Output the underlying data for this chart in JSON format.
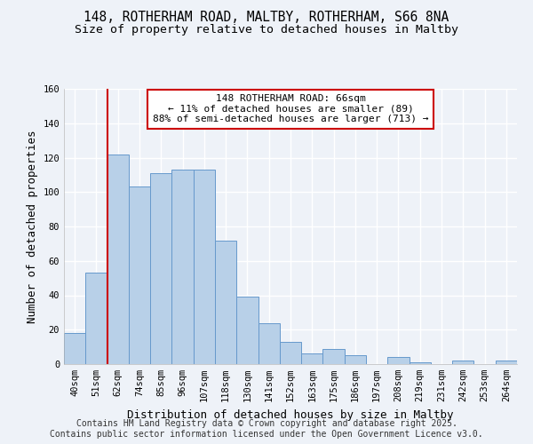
{
  "title1": "148, ROTHERHAM ROAD, MALTBY, ROTHERHAM, S66 8NA",
  "title2": "Size of property relative to detached houses in Maltby",
  "xlabel": "Distribution of detached houses by size in Maltby",
  "ylabel": "Number of detached properties",
  "bar_labels": [
    "40sqm",
    "51sqm",
    "62sqm",
    "74sqm",
    "85sqm",
    "96sqm",
    "107sqm",
    "118sqm",
    "130sqm",
    "141sqm",
    "152sqm",
    "163sqm",
    "175sqm",
    "186sqm",
    "197sqm",
    "208sqm",
    "219sqm",
    "231sqm",
    "242sqm",
    "253sqm",
    "264sqm"
  ],
  "bar_values": [
    18,
    53,
    122,
    103,
    111,
    113,
    113,
    72,
    39,
    24,
    13,
    6,
    9,
    5,
    0,
    4,
    1,
    0,
    2,
    0,
    2
  ],
  "bar_color": "#b8d0e8",
  "bar_edge_color": "#6699cc",
  "vline_x": 1.5,
  "vline_color": "#cc0000",
  "annotation_text": "148 ROTHERHAM ROAD: 66sqm\n← 11% of detached houses are smaller (89)\n88% of semi-detached houses are larger (713) →",
  "annotation_box_color": "#ffffff",
  "annotation_box_edge": "#cc0000",
  "ylim": [
    0,
    160
  ],
  "yticks": [
    0,
    20,
    40,
    60,
    80,
    100,
    120,
    140,
    160
  ],
  "footer1": "Contains HM Land Registry data © Crown copyright and database right 2025.",
  "footer2": "Contains public sector information licensed under the Open Government Licence v3.0.",
  "bg_color": "#eef2f8",
  "plot_bg_color": "#eef2f8",
  "title_fontsize": 10.5,
  "subtitle_fontsize": 9.5,
  "axis_label_fontsize": 9,
  "tick_fontsize": 7.5,
  "footer_fontsize": 7
}
